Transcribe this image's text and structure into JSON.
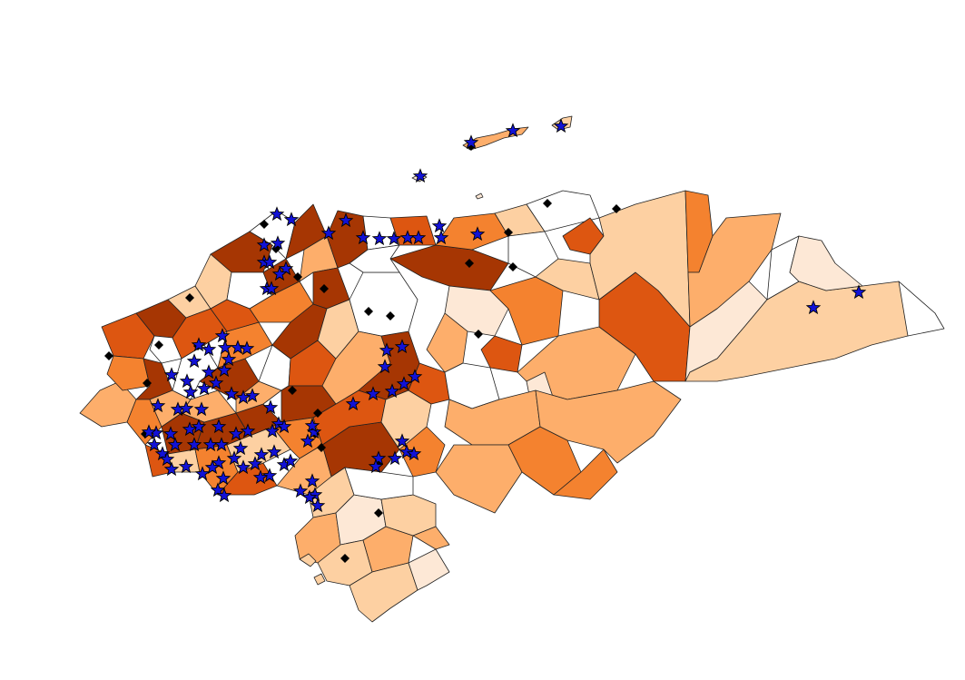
{
  "map": {
    "palette": {
      "c0": "#ffffff",
      "c1": "#fde8d6",
      "c2": "#fdd0a2",
      "c3": "#fdae6b",
      "c4": "#f4822f",
      "c5": "#dd5611",
      "c6": "#a63603",
      "border": "#222222",
      "star_fill": "#1212d6",
      "diamond_fill": "#000000"
    },
    "marker_types": [
      "star",
      "diamond"
    ]
  }
}
